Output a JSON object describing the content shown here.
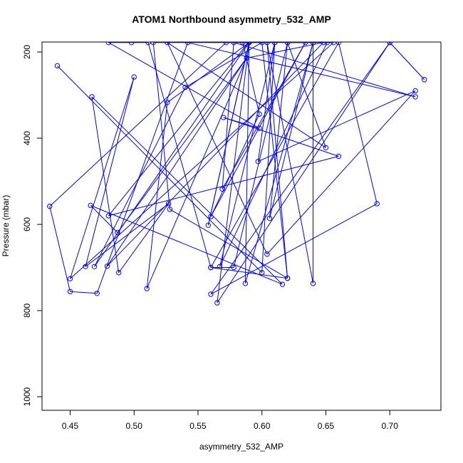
{
  "chart_data": {
    "type": "line",
    "title": "ATOM1 Northbound asymmetry_532_AMP",
    "xlabel": "asymmetry_532_AMP",
    "ylabel": "Pressure (mbar)",
    "xlim": [
      0.428,
      0.74
    ],
    "ylim": [
      200,
      1000
    ],
    "y_inverted": true,
    "x_ticks": [
      0.45,
      0.5,
      0.55,
      0.6,
      0.65,
      0.7
    ],
    "x_tick_labels": [
      "0.45",
      "0.50",
      "0.55",
      "0.60",
      "0.65",
      "0.70"
    ],
    "y_ticks": [
      200,
      400,
      600,
      800,
      1000
    ],
    "y_tick_labels": [
      "200",
      "400",
      "600",
      "800",
      "1000"
    ],
    "series_color": "#0000ff",
    "marker": "open-circle",
    "grid": false,
    "series": [
      {
        "points": [
          [
            0.44,
            232
          ],
          [
            0.6,
            712
          ],
          [
            0.61,
            178
          ],
          [
            0.515,
            178
          ],
          [
            0.528,
            565
          ],
          [
            0.62,
            725
          ],
          [
            0.6,
            178
          ],
          [
            0.54,
            282
          ],
          [
            0.469,
            698
          ],
          [
            0.59,
            178
          ],
          [
            0.585,
            178
          ],
          [
            0.598,
            344
          ],
          [
            0.56,
            582
          ],
          [
            0.634,
            178
          ],
          [
            0.569,
            518
          ],
          [
            0.578,
            178
          ],
          [
            0.72,
            304
          ],
          [
            0.542,
            178
          ],
          [
            0.471,
            760
          ],
          [
            0.45,
            756
          ],
          [
            0.434,
            558
          ],
          [
            0.572,
            178
          ],
          [
            0.656,
            178
          ],
          [
            0.45,
            726
          ],
          [
            0.5,
            258
          ],
          [
            0.462,
            698
          ],
          [
            0.527,
            552
          ],
          [
            0.488,
            712
          ],
          [
            0.467,
            304
          ],
          [
            0.616,
            739
          ],
          [
            0.466,
            556
          ],
          [
            0.487,
            619
          ],
          [
            0.588,
            214
          ],
          [
            0.479,
            697
          ],
          [
            0.648,
            178
          ],
          [
            0.588,
            214
          ],
          [
            0.51,
            749
          ],
          [
            0.526,
            317
          ],
          [
            0.59,
            178
          ],
          [
            0.558,
            602
          ],
          [
            0.59,
            176
          ],
          [
            0.48,
            580
          ],
          [
            0.66,
            442
          ],
          [
            0.57,
            352
          ],
          [
            0.598,
            377
          ],
          [
            0.48,
            178
          ],
          [
            0.498,
            178
          ],
          [
            0.511,
            178
          ],
          [
            0.56,
            700
          ],
          [
            0.66,
            178
          ],
          [
            0.69,
            552
          ],
          [
            0.56,
            762
          ],
          [
            0.7,
            178
          ],
          [
            0.727,
            264
          ],
          [
            0.7,
            178
          ],
          [
            0.565,
            782
          ],
          [
            0.59,
            178
          ],
          [
            0.587,
            737
          ],
          [
            0.64,
            178
          ],
          [
            0.62,
            178
          ],
          [
            0.578,
            700
          ],
          [
            0.56,
            700
          ],
          [
            0.62,
            725
          ],
          [
            0.604,
            178
          ],
          [
            0.64,
            737
          ],
          [
            0.64,
            178
          ],
          [
            0.606,
            586
          ],
          [
            0.62,
            178
          ],
          [
            0.65,
            422
          ],
          [
            0.526,
            178
          ],
          [
            0.604,
            669
          ],
          [
            0.72,
            290
          ],
          [
            0.597,
            454
          ],
          [
            0.61,
            178
          ],
          [
            0.567,
            698
          ],
          [
            0.651,
            178
          ]
        ]
      }
    ]
  }
}
